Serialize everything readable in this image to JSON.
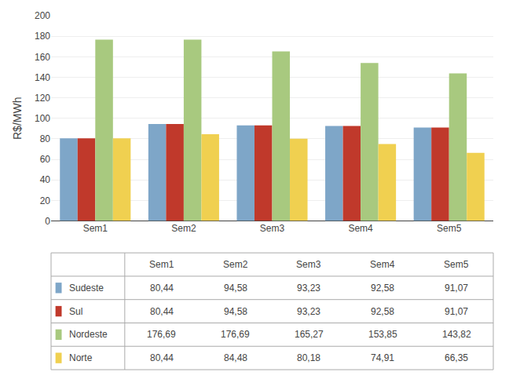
{
  "chart_data": {
    "type": "bar",
    "categories": [
      "Sem1",
      "Sem2",
      "Sem3",
      "Sem4",
      "Sem5"
    ],
    "series": [
      {
        "name": "Sudeste",
        "color": "#7ea6c8",
        "values": [
          80.44,
          94.58,
          93.23,
          92.58,
          91.07
        ],
        "value_labels": [
          "80,44",
          "94,58",
          "93,23",
          "92,58",
          "91,07"
        ]
      },
      {
        "name": "Sul",
        "color": "#c0392b",
        "values": [
          80.44,
          94.58,
          93.23,
          92.58,
          91.07
        ],
        "value_labels": [
          "80,44",
          "94,58",
          "93,23",
          "92,58",
          "91,07"
        ]
      },
      {
        "name": "Nordeste",
        "color": "#a8c97f",
        "values": [
          176.69,
          176.69,
          165.27,
          153.85,
          143.82
        ],
        "value_labels": [
          "176,69",
          "176,69",
          "165,27",
          "153,85",
          "143,82"
        ]
      },
      {
        "name": "Norte",
        "color": "#f0d050",
        "values": [
          80.44,
          84.48,
          80.18,
          74.91,
          66.35
        ],
        "value_labels": [
          "80,44",
          "84,48",
          "80,18",
          "74,91",
          "66,35"
        ]
      }
    ],
    "ylabel": "R$/MWh",
    "ylim": [
      0,
      200
    ],
    "yticks": [
      0,
      20,
      40,
      60,
      80,
      100,
      120,
      140,
      160,
      180,
      200
    ],
    "grid": true
  }
}
